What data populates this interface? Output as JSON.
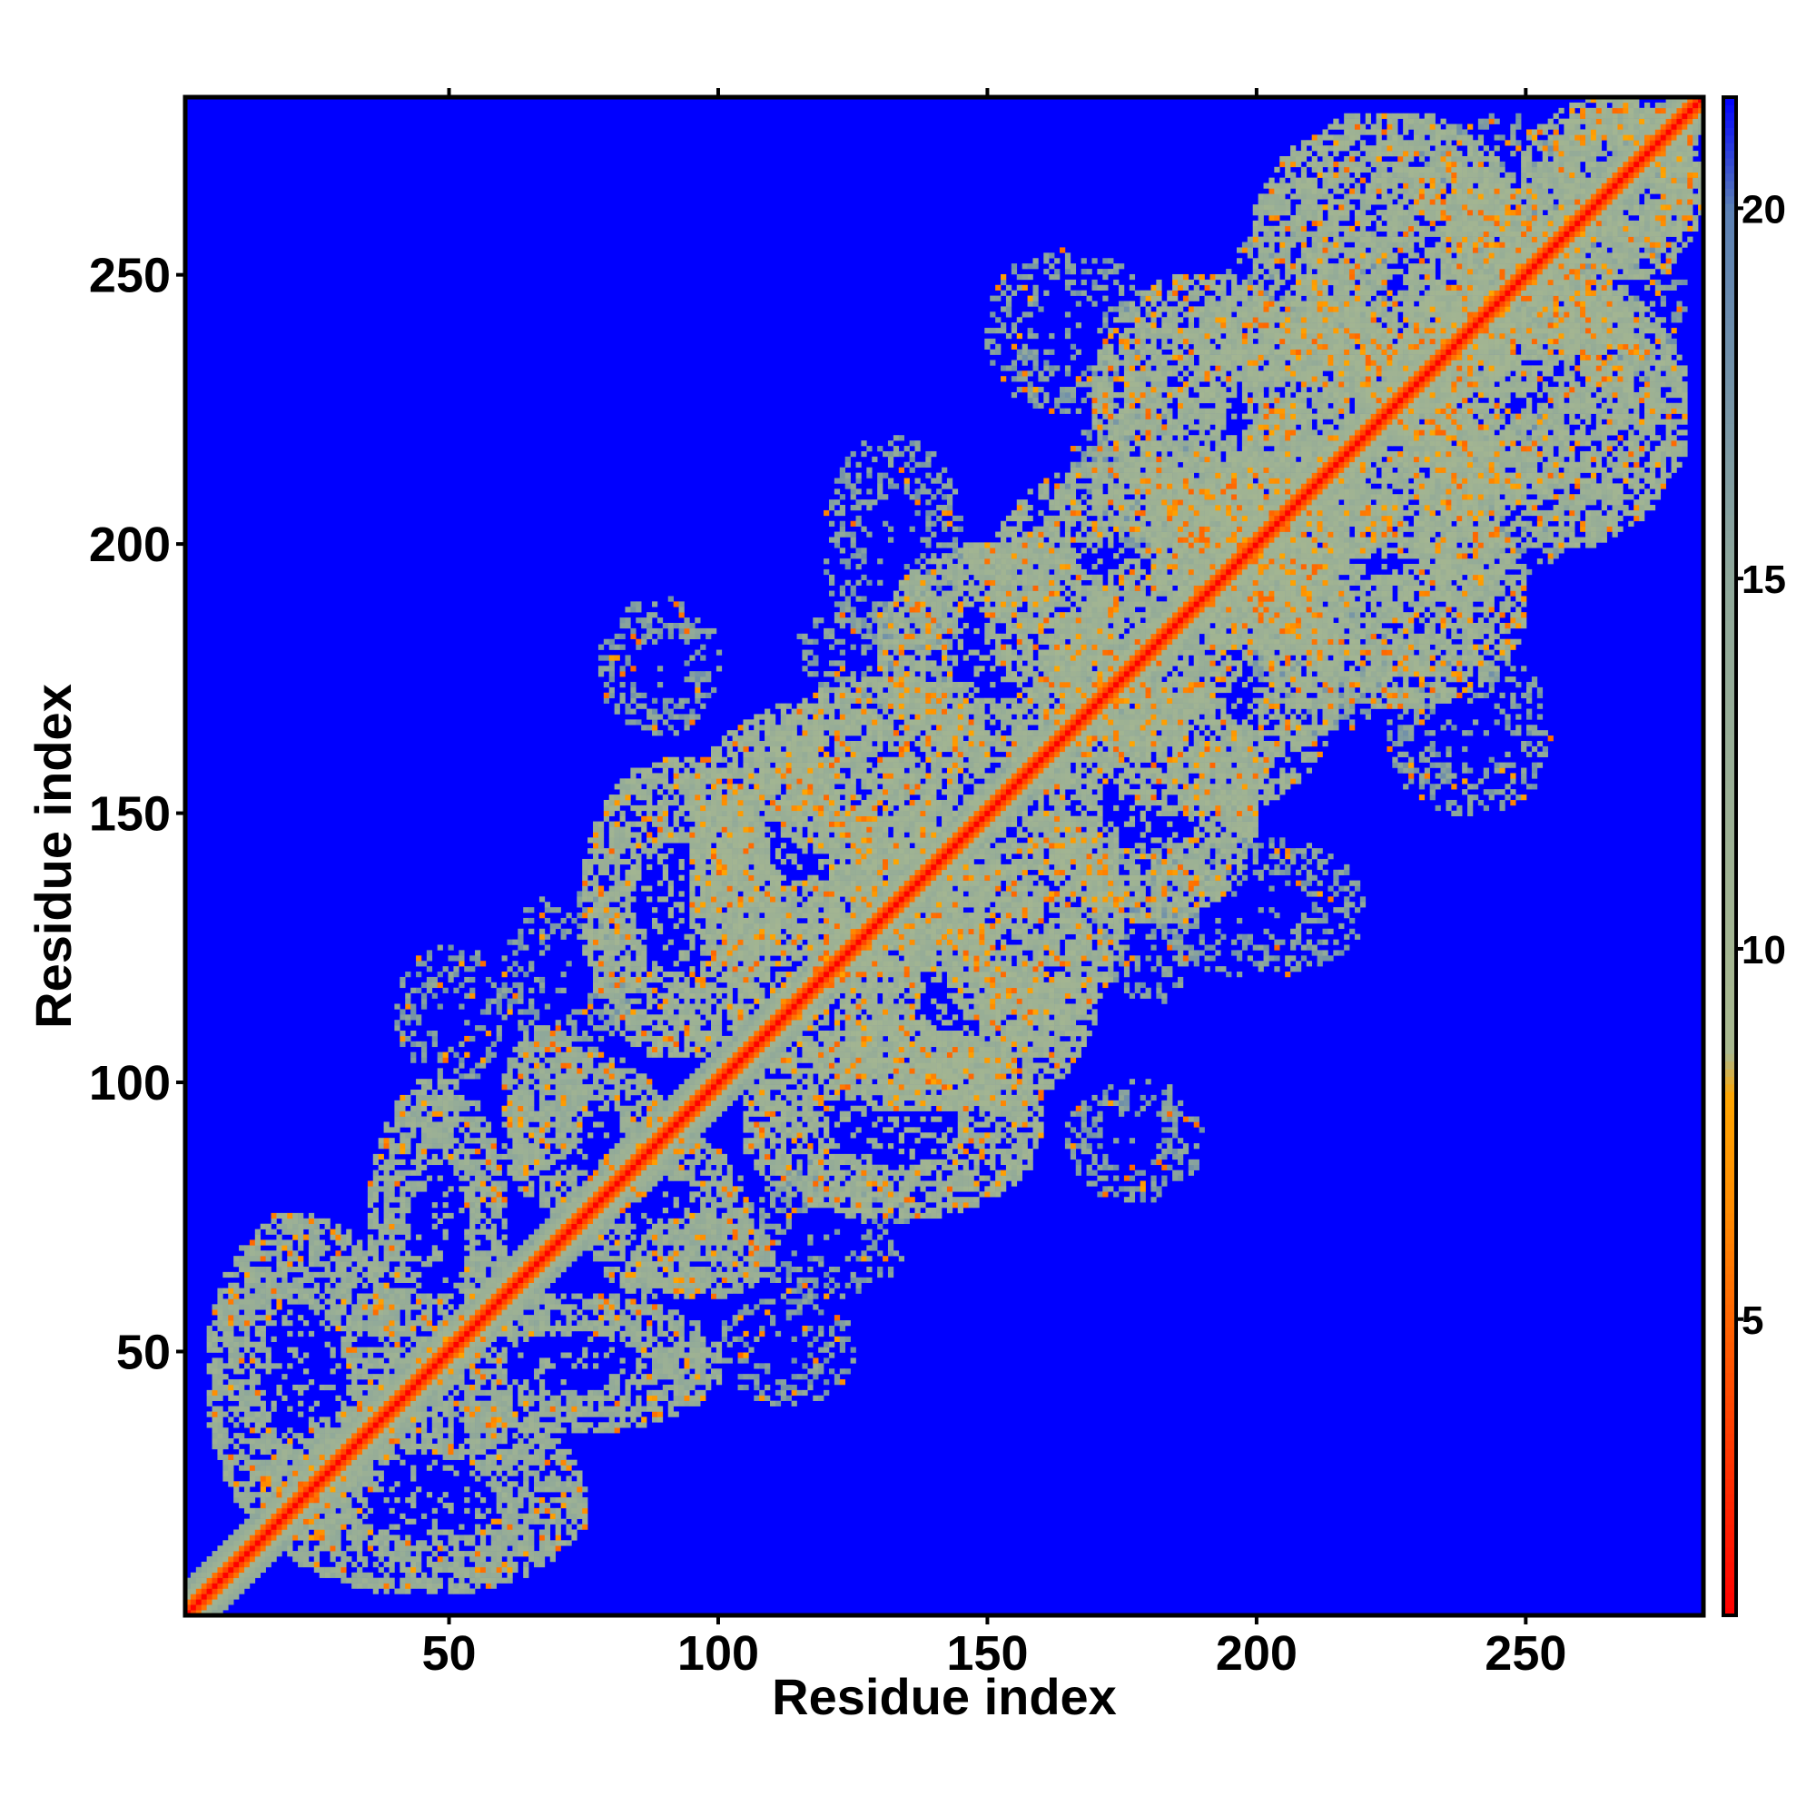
{
  "chart_data": {
    "type": "heatmap",
    "title": "",
    "xlabel": "Residue index",
    "ylabel": "Residue index",
    "xlim": [
      1,
      283
    ],
    "ylim": [
      1,
      283
    ],
    "n_residues": 283,
    "x_ticks": [
      50,
      100,
      150,
      200,
      250
    ],
    "y_ticks": [
      50,
      100,
      150,
      200,
      250
    ],
    "x_tick_labels": [
      "50",
      "100",
      "150",
      "200",
      "250"
    ],
    "y_tick_labels": [
      "50",
      "100",
      "150",
      "200",
      "250"
    ],
    "colorbar": {
      "range": [
        1,
        21.5
      ],
      "ticks": [
        5,
        10,
        15,
        20
      ],
      "tick_labels": [
        "5",
        "10",
        "15",
        "20"
      ],
      "stops": [
        {
          "value": 1,
          "color": "#ff0000"
        },
        {
          "value": 4,
          "color": "#ff4a00"
        },
        {
          "value": 6.5,
          "color": "#ff8c00"
        },
        {
          "value": 8,
          "color": "#ffa500"
        },
        {
          "value": 8.6,
          "color": "#a9b98f"
        },
        {
          "value": 15,
          "color": "#8fa89a"
        },
        {
          "value": 20,
          "color": "#5b80b4"
        },
        {
          "value": 21.5,
          "color": "#0000ff"
        }
      ]
    },
    "description_of_values": "Symmetric residue-residue distance map; values near 1 on the diagonal, background (far distances) at colorbar maximum",
    "background_value": 21.5,
    "diagonal_band_halfwidth": 4,
    "contact_regions": [
      {
        "i": [
          5,
          40
        ],
        "j": [
          15,
          75
        ],
        "value": 12
      },
      {
        "i": [
          35,
          60
        ],
        "j": [
          45,
          100
        ],
        "value": 12
      },
      {
        "i": [
          60,
          75
        ],
        "j": [
          85,
          110
        ],
        "value": 12
      },
      {
        "i": [
          75,
          105
        ],
        "j": [
          60,
          90
        ],
        "value": 12
      },
      {
        "i": [
          95,
          130
        ],
        "j": [
          115,
          160
        ],
        "value": 11
      },
      {
        "i": [
          110,
          150
        ],
        "j": [
          140,
          175
        ],
        "value": 11
      },
      {
        "i": [
          105,
          160
        ],
        "j": [
          75,
          110
        ],
        "value": 11
      },
      {
        "i": [
          125,
          170
        ],
        "j": [
          95,
          140
        ],
        "value": 11
      },
      {
        "i": [
          150,
          200
        ],
        "j": [
          165,
          215
        ],
        "value": 11
      },
      {
        "i": [
          160,
          200
        ],
        "j": [
          130,
          175
        ],
        "value": 11
      },
      {
        "i": [
          180,
          230
        ],
        "j": [
          195,
          245
        ],
        "value": 11
      },
      {
        "i": [
          200,
          250
        ],
        "j": [
          170,
          210
        ],
        "value": 11
      },
      {
        "i": [
          210,
          260
        ],
        "j": [
          225,
          270
        ],
        "value": 11
      },
      {
        "i": [
          230,
          280
        ],
        "j": [
          200,
          250
        ],
        "value": 11
      },
      {
        "i": [
          250,
          283
        ],
        "j": [
          255,
          283
        ],
        "value": 11
      }
    ],
    "sparse_regions": [
      {
        "i": [
          40,
          60
        ],
        "j": [
          100,
          125
        ],
        "value": 16
      },
      {
        "i": [
          115,
          145
        ],
        "j": [
          170,
          190
        ],
        "value": 16
      },
      {
        "i": [
          165,
          195
        ],
        "j": [
          200,
          225
        ],
        "value": 16
      },
      {
        "i": [
          195,
          225
        ],
        "j": [
          240,
          260
        ],
        "value": 16
      },
      {
        "i": [
          230,
          260
        ],
        "j": [
          255,
          280
        ],
        "value": 16
      },
      {
        "i": [
          225,
          255
        ],
        "j": [
          150,
          180
        ],
        "value": 16
      },
      {
        "i": [
          180,
          220
        ],
        "j": [
          120,
          145
        ],
        "value": 16
      },
      {
        "i": [
          165,
          190
        ],
        "j": [
          78,
          100
        ],
        "value": 16
      },
      {
        "i": [
          105,
          135
        ],
        "j": [
          60,
          85
        ],
        "value": 16
      }
    ]
  }
}
